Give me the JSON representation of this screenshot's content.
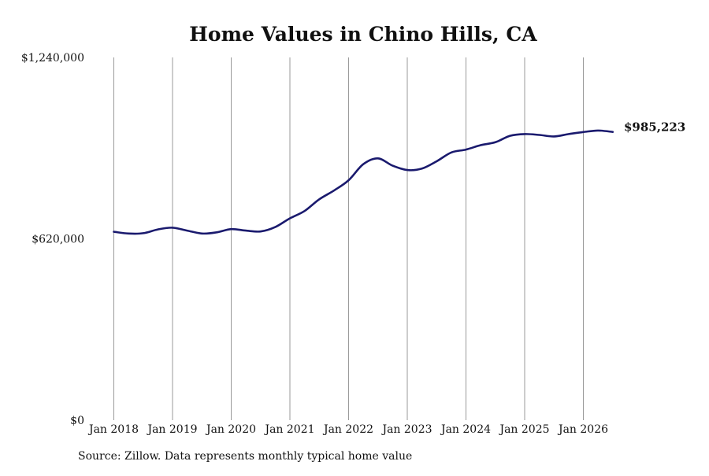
{
  "chart_data": {
    "type": "line",
    "title": "Home Values in Chino Hills, CA",
    "xlabel": "",
    "ylabel": "",
    "ylim": [
      0,
      1240000
    ],
    "yticks": [
      {
        "value": 0,
        "label": "$0"
      },
      {
        "value": 620000,
        "label": "$620,000"
      },
      {
        "value": 1240000,
        "label": "$1,240,000"
      }
    ],
    "xticks": [
      "Jan 2018",
      "Jan 2019",
      "Jan 2020",
      "Jan 2021",
      "Jan 2022",
      "Jan 2023",
      "Jan 2024",
      "Jan 2025",
      "Jan 2026"
    ],
    "grid": "vertical",
    "series_color": "#1a1a6e",
    "end_label": "$985,223",
    "series": [
      {
        "x": [
          "2018-01",
          "2018-04",
          "2018-07",
          "2018-10",
          "2019-01",
          "2019-04",
          "2019-07",
          "2019-10",
          "2020-01",
          "2020-04",
          "2020-07",
          "2020-10",
          "2021-01",
          "2021-04",
          "2021-07",
          "2021-10",
          "2022-01",
          "2022-04",
          "2022-07",
          "2022-10",
          "2023-01",
          "2023-04",
          "2023-07",
          "2023-10",
          "2024-01",
          "2024-04",
          "2024-07",
          "2024-10",
          "2025-01",
          "2025-04",
          "2025-07",
          "2025-10",
          "2026-01",
          "2026-04",
          "2026-07"
        ],
        "values": [
          644000,
          638000,
          639000,
          652000,
          658000,
          648000,
          638000,
          642000,
          653000,
          648000,
          645000,
          660000,
          690000,
          715000,
          755000,
          785000,
          820000,
          875000,
          895000,
          870000,
          855000,
          860000,
          885000,
          915000,
          925000,
          940000,
          950000,
          972000,
          978000,
          975000,
          970000,
          978000,
          985000,
          990000,
          985223
        ]
      }
    ]
  },
  "source_note": "Source: Zillow. Data represents monthly typical home value"
}
